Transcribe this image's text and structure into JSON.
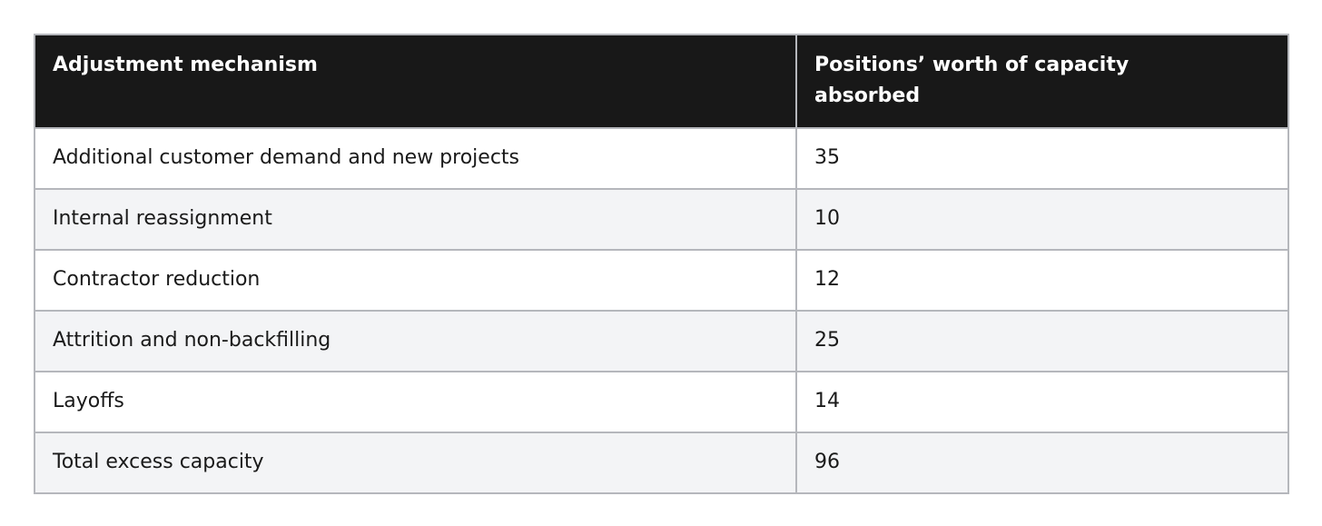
{
  "table": {
    "header": [
      "Adjustment mechanism",
      "Positions’ worth of capacity absorbed"
    ],
    "rows": [
      [
        "Additional customer demand and new projects",
        35
      ],
      [
        "Internal reassignment",
        10
      ],
      [
        "Contractor reduction",
        12
      ],
      [
        "Attrition and non-backfilling",
        25
      ],
      [
        "Layoffs",
        14
      ],
      [
        "Total excess capacity",
        96
      ]
    ]
  }
}
